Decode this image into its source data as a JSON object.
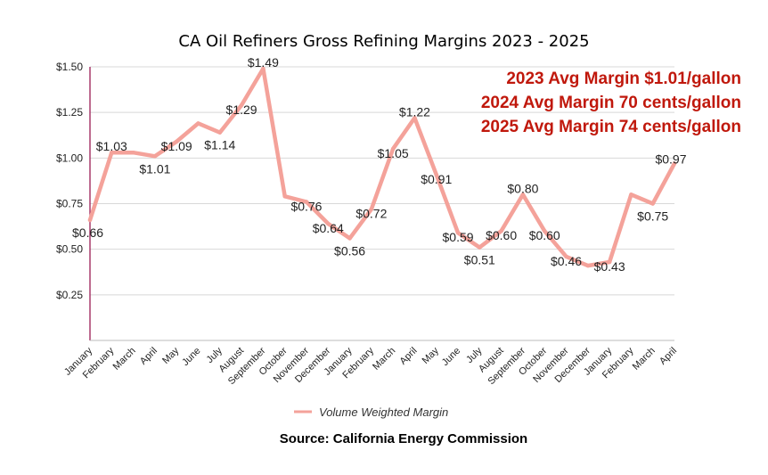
{
  "chart_data": {
    "type": "line",
    "title": "CA Oil Refiners Gross Refining Margins 2023 - 2025",
    "x": [
      "January",
      "February",
      "March",
      "April",
      "May",
      "June",
      "July",
      "August",
      "September",
      "October",
      "November",
      "December",
      "January",
      "February",
      "March",
      "April",
      "May",
      "June",
      "July",
      "August",
      "September",
      "October",
      "November",
      "December",
      "January",
      "February",
      "March",
      "April"
    ],
    "series": [
      {
        "name": "Volume Weighted Margin",
        "values": [
          0.66,
          1.03,
          1.03,
          1.01,
          1.09,
          1.19,
          1.14,
          1.29,
          1.49,
          0.79,
          0.76,
          0.64,
          0.56,
          0.72,
          1.05,
          1.22,
          0.91,
          0.59,
          0.51,
          0.6,
          0.8,
          0.6,
          0.46,
          0.41,
          0.43,
          0.8,
          0.75,
          0.97
        ]
      }
    ],
    "data_labels": [
      {
        "i": 0,
        "text": "$0.66"
      },
      {
        "i": 1,
        "text": "$1.03"
      },
      {
        "i": 3,
        "text": "$1.01"
      },
      {
        "i": 4,
        "text": "$1.09"
      },
      {
        "i": 6,
        "text": "$1.14"
      },
      {
        "i": 7,
        "text": "$1.29"
      },
      {
        "i": 8,
        "text": "$1.49"
      },
      {
        "i": 10,
        "text": "$0.76"
      },
      {
        "i": 11,
        "text": "$0.64"
      },
      {
        "i": 12,
        "text": "$0.56"
      },
      {
        "i": 13,
        "text": "$0.72"
      },
      {
        "i": 14,
        "text": "$1.05"
      },
      {
        "i": 15,
        "text": "$1.22"
      },
      {
        "i": 16,
        "text": "$0.91"
      },
      {
        "i": 17,
        "text": "$0.59"
      },
      {
        "i": 18,
        "text": "$0.51"
      },
      {
        "i": 19,
        "text": "$0.60"
      },
      {
        "i": 20,
        "text": "$0.80"
      },
      {
        "i": 21,
        "text": "$0.60"
      },
      {
        "i": 22,
        "text": "$0.46"
      },
      {
        "i": 24,
        "text": "$0.43"
      },
      {
        "i": 26,
        "text": "$0.75"
      },
      {
        "i": 27,
        "text": "$0.97"
      }
    ],
    "yticks": [
      {
        "value": 0.25,
        "label": "$0.25"
      },
      {
        "value": 0.5,
        "label": "$0.50"
      },
      {
        "value": 0.75,
        "label": "$0.75"
      },
      {
        "value": 1.0,
        "label": "$1.00"
      },
      {
        "value": 1.25,
        "label": "$1.25"
      },
      {
        "value": 1.5,
        "label": "$1.50"
      }
    ],
    "ylim": [
      0,
      1.5
    ],
    "grid": true,
    "legend_position": "bottom",
    "annotations": [
      "2023 Avg Margin $1.01/gallon",
      "2024 Avg Margin 70 cents/gallon",
      "2025 Avg Margin 74 cents/gallon"
    ],
    "source": "Source: California Energy Commission"
  },
  "colors": {
    "line": "#f4a29a",
    "annotation": "#c0180c",
    "axis": "#9c1c55",
    "grid": "#d8d8d8"
  }
}
